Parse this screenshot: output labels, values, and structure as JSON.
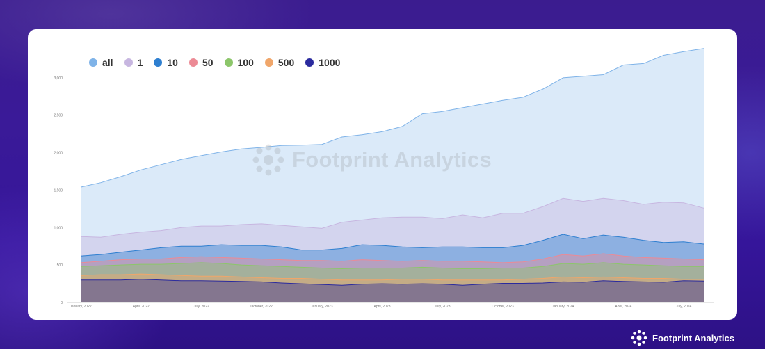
{
  "brand": {
    "name": "Footprint Analytics",
    "watermark": "Footprint Analytics"
  },
  "chart_data": {
    "type": "area",
    "title": "",
    "xlabel": "",
    "ylabel": "",
    "ylim": [
      0,
      3500
    ],
    "yticks": [
      0,
      500,
      1000,
      1500,
      2000,
      2500,
      3000
    ],
    "ytick_labels": [
      "0",
      "500",
      "1,000",
      "1,500",
      "2,000",
      "2,500",
      "3,000"
    ],
    "x": [
      "2022-01",
      "2022-02",
      "2022-03",
      "2022-04",
      "2022-05",
      "2022-06",
      "2022-07",
      "2022-08",
      "2022-09",
      "2022-10",
      "2022-11",
      "2022-12",
      "2023-01",
      "2023-02",
      "2023-03",
      "2023-04",
      "2023-05",
      "2023-06",
      "2023-07",
      "2023-08",
      "2023-09",
      "2023-10",
      "2023-11",
      "2023-12",
      "2024-01",
      "2024-02",
      "2024-03",
      "2024-04",
      "2024-05",
      "2024-06",
      "2024-07",
      "2024-08"
    ],
    "xtick_labels": [
      "January, 2022",
      "April, 2022",
      "July, 2022",
      "October, 2022",
      "January, 2023",
      "April, 2023",
      "July, 2023",
      "October, 2023",
      "January, 2024",
      "April, 2024",
      "July, 2024"
    ],
    "xtick_positions": [
      "2022-01",
      "2022-04",
      "2022-07",
      "2022-10",
      "2023-01",
      "2023-04",
      "2023-07",
      "2023-10",
      "2024-01",
      "2024-04",
      "2024-07"
    ],
    "grid": false,
    "legend_position": "top-left",
    "stacked": false,
    "series": [
      {
        "name": "all",
        "color": "#7fb3e8",
        "values": [
          1540,
          1600,
          1680,
          1770,
          1840,
          1910,
          1960,
          2010,
          2050,
          2070,
          2095,
          2100,
          2110,
          2210,
          2240,
          2280,
          2350,
          2520,
          2550,
          2600,
          2650,
          2700,
          2740,
          2850,
          3000,
          3020,
          3040,
          3170,
          3190,
          3300,
          3350,
          3390
        ]
      },
      {
        "name": "1",
        "color": "#c7b6e0",
        "values": [
          880,
          870,
          910,
          940,
          960,
          1000,
          1020,
          1020,
          1040,
          1050,
          1030,
          1010,
          990,
          1070,
          1100,
          1130,
          1140,
          1140,
          1120,
          1170,
          1130,
          1190,
          1190,
          1280,
          1390,
          1350,
          1390,
          1360,
          1310,
          1340,
          1330,
          1260
        ]
      },
      {
        "name": "10",
        "color": "#2e7fd0",
        "values": [
          620,
          640,
          670,
          700,
          730,
          750,
          750,
          770,
          760,
          760,
          740,
          700,
          700,
          720,
          770,
          760,
          740,
          730,
          740,
          740,
          730,
          730,
          760,
          830,
          910,
          850,
          900,
          870,
          830,
          800,
          810,
          780
        ]
      },
      {
        "name": "50",
        "color": "#ec8a95",
        "values": [
          530,
          550,
          570,
          580,
          580,
          600,
          610,
          600,
          590,
          580,
          570,
          560,
          560,
          550,
          570,
          560,
          550,
          560,
          550,
          550,
          540,
          530,
          540,
          580,
          640,
          620,
          650,
          620,
          600,
          590,
          580,
          570
        ]
      },
      {
        "name": "100",
        "color": "#8cc66a",
        "values": [
          480,
          490,
          500,
          510,
          510,
          520,
          530,
          520,
          500,
          490,
          480,
          470,
          460,
          450,
          460,
          460,
          460,
          470,
          460,
          450,
          450,
          460,
          460,
          480,
          520,
          510,
          530,
          510,
          500,
          490,
          480,
          480
        ]
      },
      {
        "name": "500",
        "color": "#f0a66a",
        "values": [
          360,
          370,
          370,
          380,
          370,
          360,
          350,
          350,
          340,
          330,
          320,
          320,
          310,
          300,
          300,
          300,
          310,
          310,
          300,
          300,
          300,
          300,
          310,
          320,
          340,
          330,
          340,
          330,
          320,
          320,
          310,
          310
        ]
      },
      {
        "name": "1000",
        "color": "#2a2a9e",
        "values": [
          300,
          300,
          300,
          310,
          300,
          290,
          290,
          285,
          280,
          275,
          260,
          250,
          240,
          230,
          245,
          250,
          245,
          250,
          245,
          230,
          245,
          255,
          255,
          260,
          275,
          270,
          290,
          280,
          275,
          270,
          290,
          285
        ]
      }
    ]
  }
}
